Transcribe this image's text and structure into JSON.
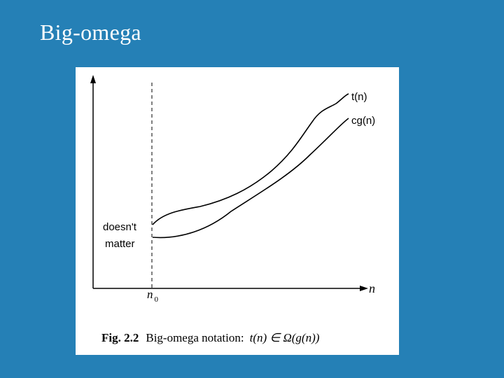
{
  "slide": {
    "title": "Big-omega"
  },
  "figure": {
    "curve_labels": {
      "upper": "t(n)",
      "lower": "cg(n)"
    },
    "annotation": [
      "doesn't",
      "matter"
    ],
    "x_axis_label": "n",
    "threshold_label": "n",
    "threshold_subscript": "0",
    "caption": {
      "number": "Fig. 2.2",
      "text": "Big-omega notation:",
      "formula": "t(n) ∈ Ω(g(n))"
    }
  }
}
